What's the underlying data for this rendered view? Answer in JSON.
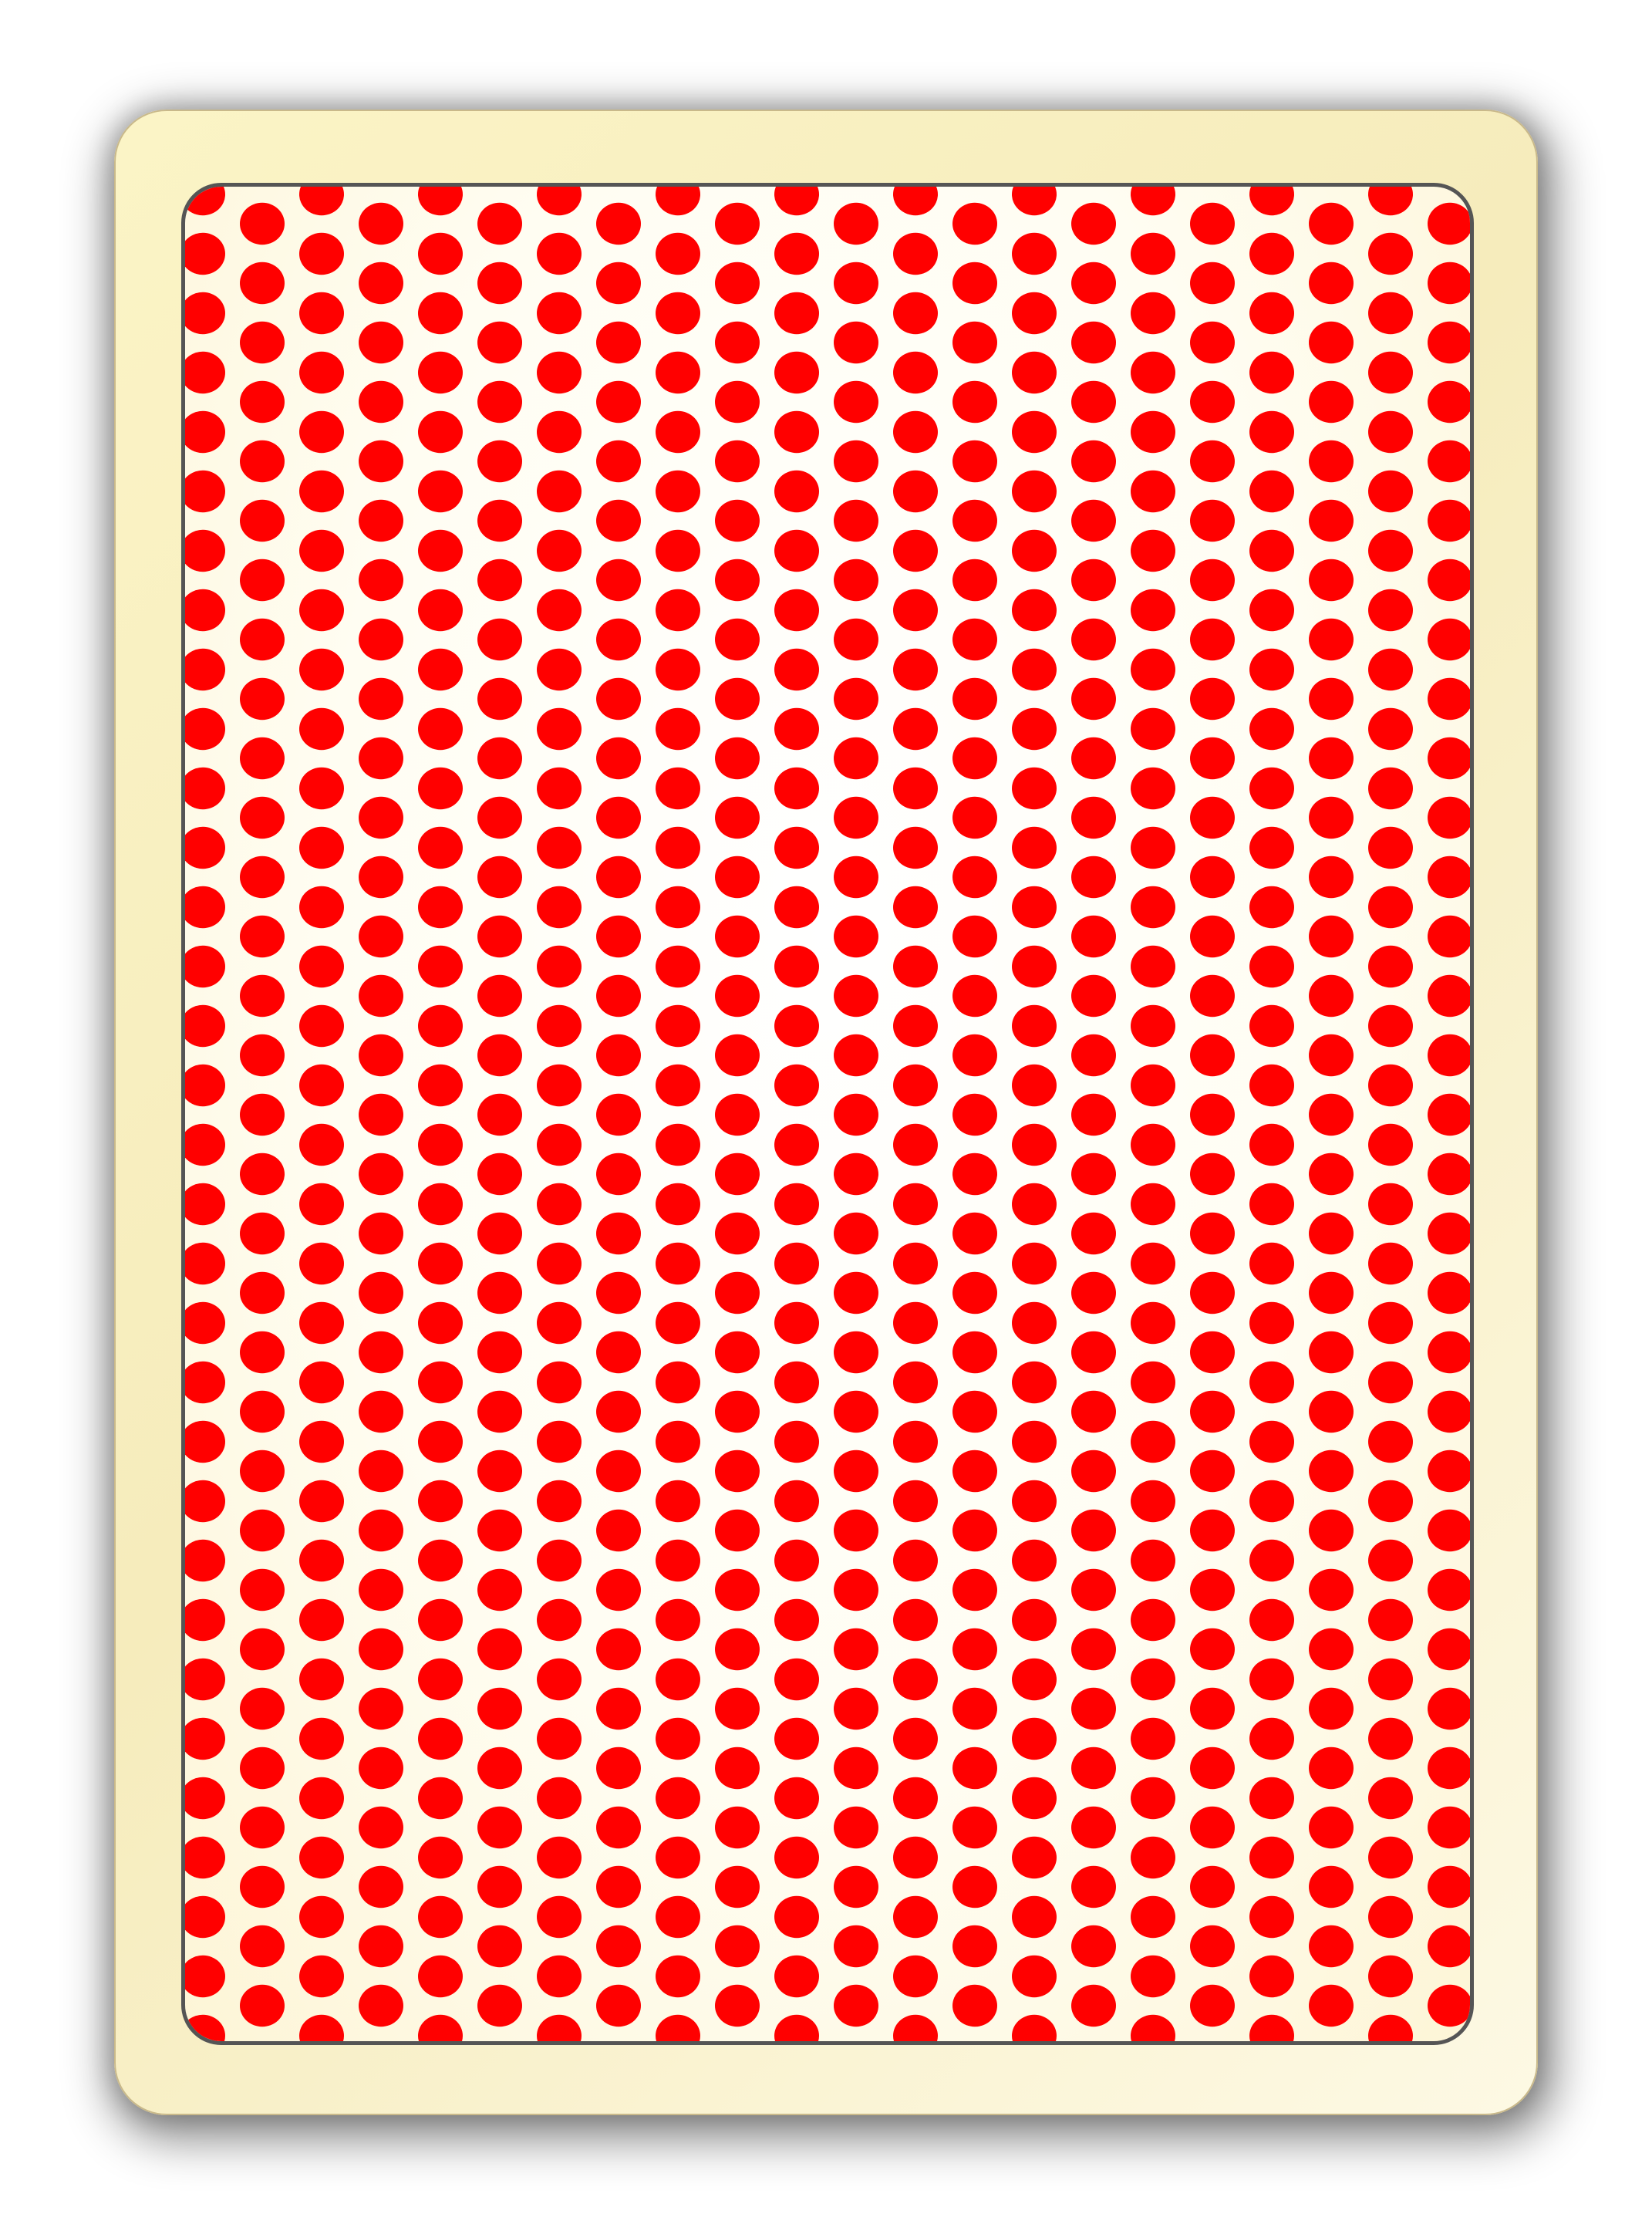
{
  "card": {
    "face": "back",
    "pattern": "polka-dots",
    "colors": {
      "border": "#f8efc4",
      "frame_line": "#555555",
      "dot": "#ff0000",
      "field": "#fffcee"
    }
  }
}
